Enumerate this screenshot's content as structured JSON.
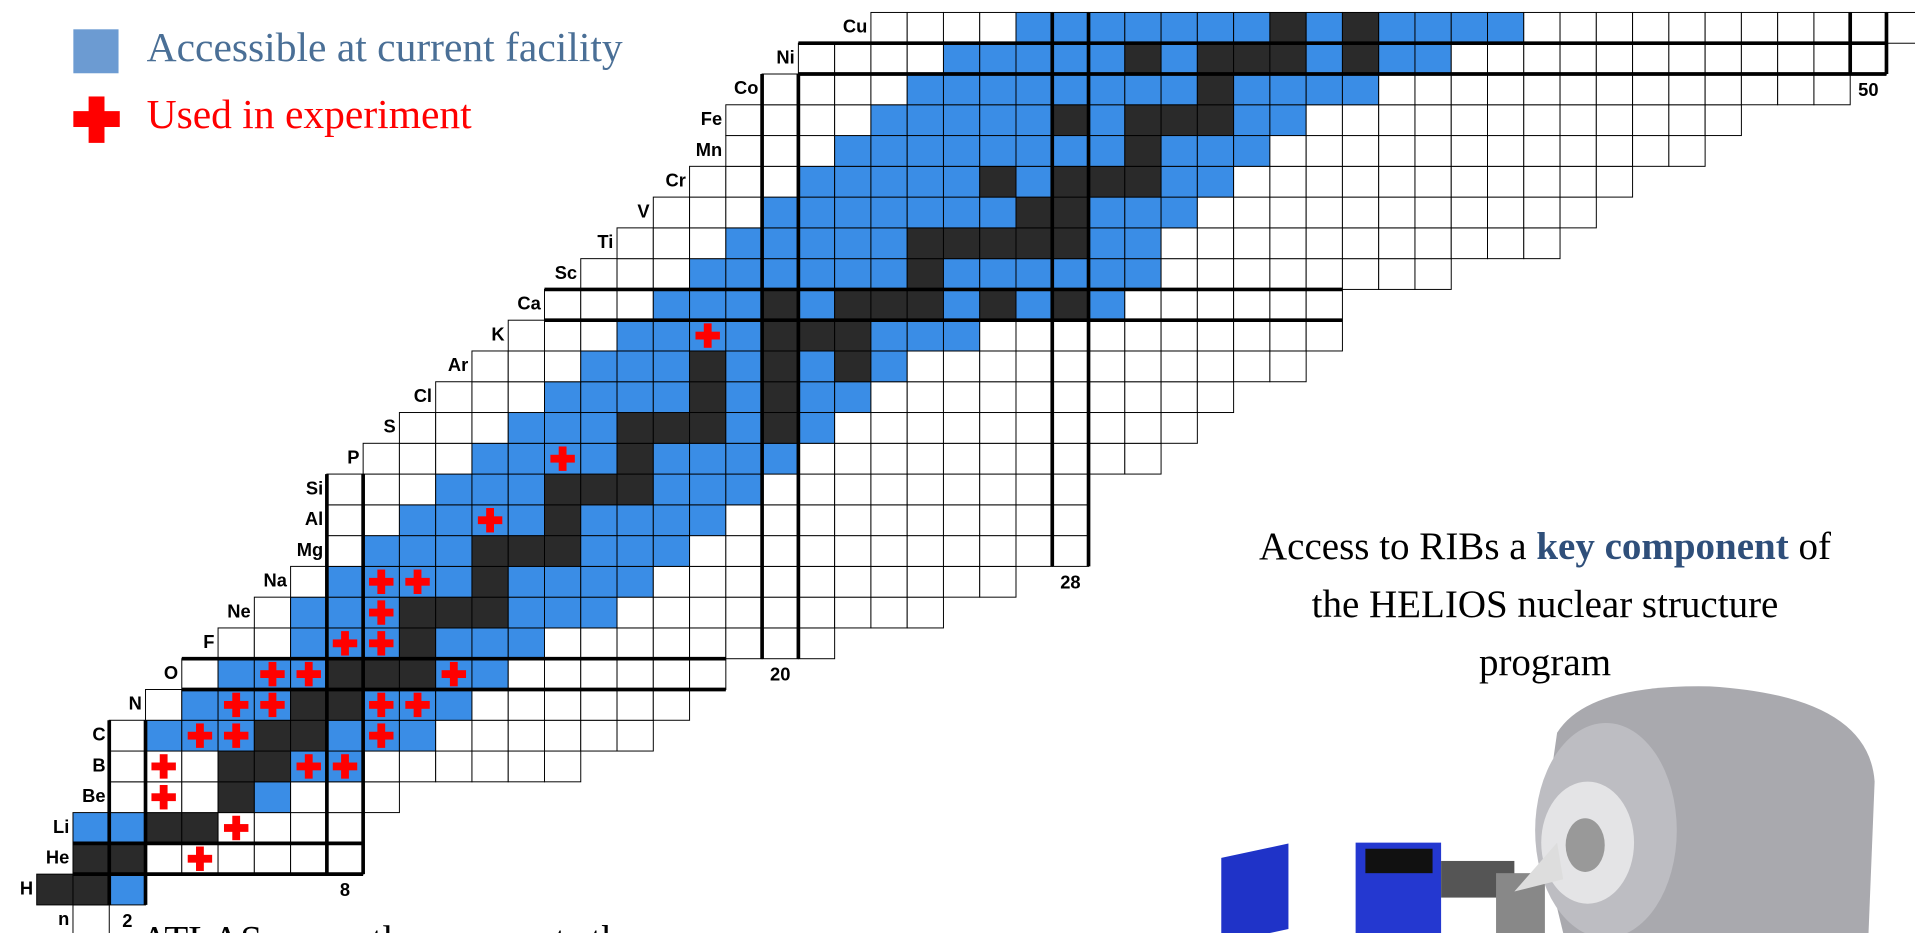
{
  "legend": {
    "accessible": "Accessible at current facility",
    "used": "Used in experiment"
  },
  "elements": [
    "n",
    "H",
    "He",
    "Li",
    "Be",
    "B",
    "C",
    "N",
    "O",
    "F",
    "Ne",
    "Na",
    "Mg",
    "Al",
    "Si",
    "P",
    "S",
    "Cl",
    "Ar",
    "K",
    "Ca",
    "Sc",
    "Ti",
    "V",
    "Cr",
    "Mn",
    "Fe",
    "Co",
    "Ni",
    "Cu"
  ],
  "magic_numbers": [
    2,
    8,
    20,
    28,
    50
  ],
  "callout": {
    "parts": [
      "Access to RIBs a",
      "key component",
      "of",
      "the HELIOS nuclear structure",
      "program"
    ]
  },
  "footer": "ATLAS currently represents the"
}
